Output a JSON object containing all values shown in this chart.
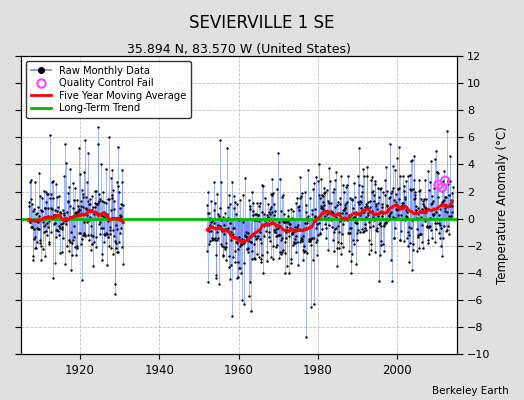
{
  "title": "SEVIERVILLE 1 SE",
  "subtitle": "35.894 N, 83.570 W (United States)",
  "ylabel": "Temperature Anomaly (°C)",
  "credit": "Berkeley Earth",
  "ylim": [
    -10,
    12
  ],
  "xlim": [
    1905,
    2015
  ],
  "yticks": [
    -10,
    -8,
    -6,
    -4,
    -2,
    0,
    2,
    4,
    6,
    8,
    10,
    12
  ],
  "xticks": [
    1920,
    1940,
    1960,
    1980,
    2000
  ],
  "gap_start": 1931,
  "gap_end": 1952,
  "bg_color": "#e0e0e0",
  "plot_bg": "#ffffff",
  "grid_color": "#c0c0c0",
  "raw_line_color": "#6688ff",
  "raw_dot_color": "#000000",
  "ma_color": "#ff0000",
  "trend_color": "#00bb00",
  "qc_color": "#ff44ff",
  "seed": 42,
  "years_start": 1907,
  "years_end": 2013
}
